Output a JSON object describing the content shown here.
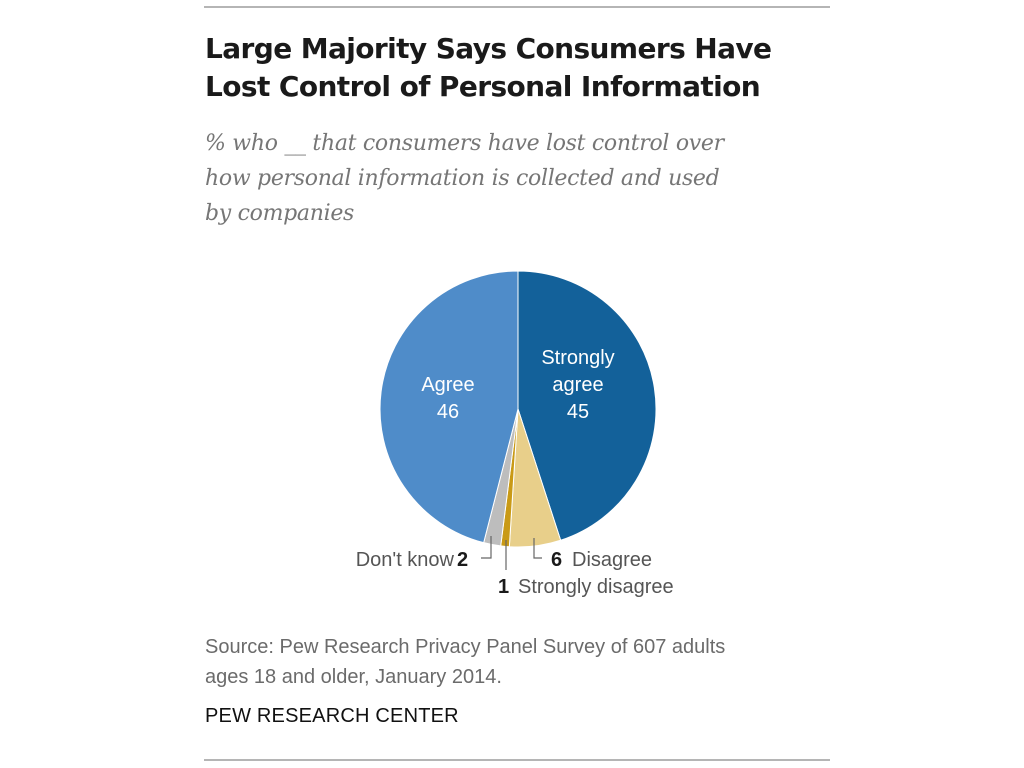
{
  "header": {
    "title_line1": "Large Majority Says Consumers Have",
    "title_line2": "Lost Control of Personal Information",
    "subtitle_line1": "% who __ that consumers have lost control over",
    "subtitle_line2": "how personal information is collected and used",
    "subtitle_line3": "by companies"
  },
  "chart_data": {
    "type": "pie",
    "title": "Large Majority Says Consumers Have Lost Control of Personal Information",
    "subtitle": "% who __ that consumers have lost control over how personal information is collected and used by companies",
    "slices": [
      {
        "key": "strongly-agree",
        "label_lines": [
          "Strongly",
          "agree"
        ],
        "value": 45,
        "color": "#13619a"
      },
      {
        "key": "disagree",
        "label_lines": [
          "Disagree"
        ],
        "value": 6,
        "color": "#e8cf8a"
      },
      {
        "key": "strongly-disagree",
        "label_lines": [
          "Strongly disagree"
        ],
        "value": 1,
        "color": "#c99a16"
      },
      {
        "key": "dont-know",
        "label_lines": [
          "Don't know"
        ],
        "value": 2,
        "color": "#bdbdbd"
      },
      {
        "key": "agree",
        "label_lines": [
          "Agree"
        ],
        "value": 46,
        "color": "#4f8cc9"
      }
    ]
  },
  "footer": {
    "source_line1": "Source: Pew Research Privacy Panel Survey of 607 adults",
    "source_line2": "ages 18 and older, January 2014.",
    "organization": "PEW RESEARCH CENTER"
  }
}
